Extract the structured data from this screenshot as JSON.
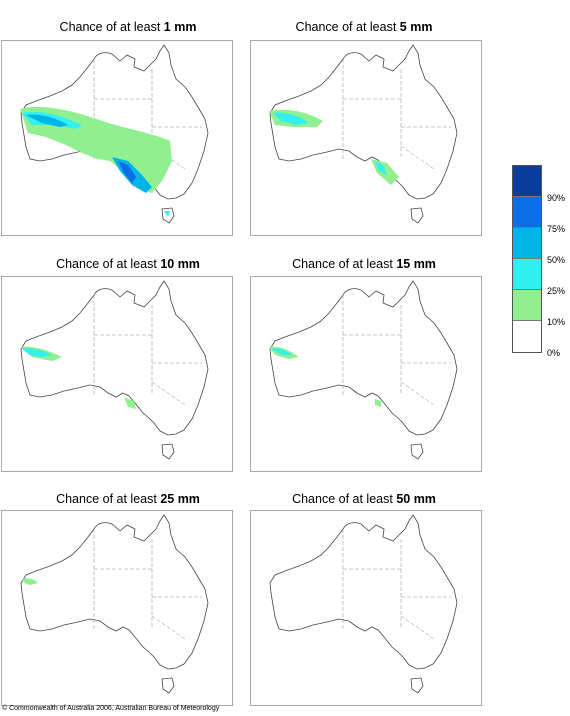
{
  "panels": [
    {
      "title_prefix": "Chance of at least",
      "amount": "1 mm"
    },
    {
      "title_prefix": "Chance of at least",
      "amount": "5 mm"
    },
    {
      "title_prefix": "Chance of at least",
      "amount": "10 mm"
    },
    {
      "title_prefix": "Chance of at least",
      "amount": "15 mm"
    },
    {
      "title_prefix": "Chance of at least",
      "amount": "25 mm"
    },
    {
      "title_prefix": "Chance of at least",
      "amount": "50 mm"
    }
  ],
  "legend": {
    "labels": [
      "90%",
      "75%",
      "50%",
      "25%",
      "10%",
      "0%"
    ],
    "colors": [
      "#0a3c9c",
      "#0a6ee6",
      "#00b4e6",
      "#30f0f0",
      "#90f090",
      "#ffffff"
    ]
  },
  "copyright": "© Commonwealth of Australia 2006, Australian Bureau of Meteorology"
}
